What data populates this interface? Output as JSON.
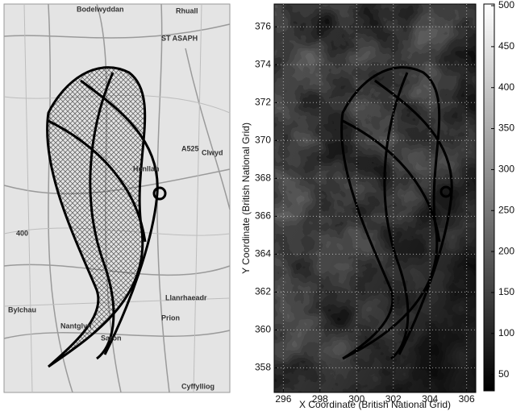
{
  "map": {
    "labels": [
      "Bodelwyddan",
      "ST ASAPH",
      "Rhuall",
      "A525",
      "Henllan",
      "Clwyd",
      "Bylchau",
      "Nantglyn",
      "Saron",
      "Prion",
      "Llanrhaeadr",
      "Cyffylliog",
      "400"
    ]
  },
  "chart_data": {
    "type": "contour",
    "x_label": "X Coordinate (British National Grid)",
    "y_label": "Y Coordinate (British National Grid)",
    "xlim": [
      295.5,
      306.5
    ],
    "ylim": [
      356.7,
      377.2
    ],
    "xticks": [
      296,
      298,
      300,
      302,
      304,
      306
    ],
    "yticks": [
      358,
      360,
      362,
      364,
      366,
      368,
      370,
      372,
      374,
      376
    ],
    "grid": true,
    "colorbar": {
      "lim": [
        30,
        502
      ],
      "ticks": [
        50,
        100,
        150,
        200,
        250,
        300,
        350,
        400,
        450,
        500
      ]
    }
  }
}
